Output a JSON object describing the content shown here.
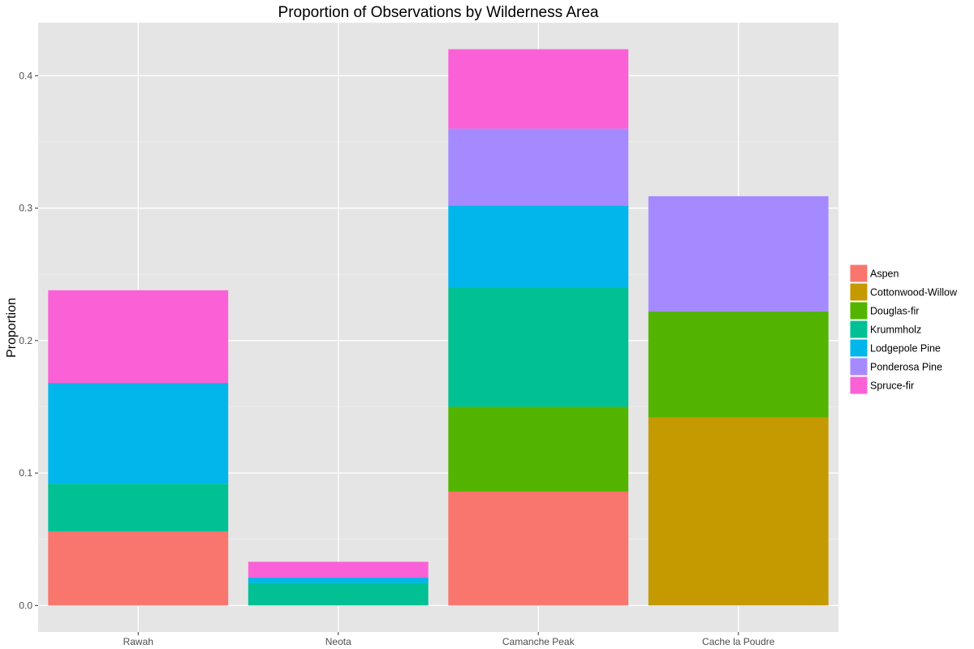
{
  "chart_data": {
    "type": "bar",
    "stacked": true,
    "title": "Proportion of Observations by Wilderness Area",
    "xlabel": "",
    "ylabel": "Proportion",
    "ylim": [
      -0.02,
      0.44
    ],
    "yticks": [
      0.0,
      0.1,
      0.2,
      0.3,
      0.4
    ],
    "ytick_labels": [
      "0.0",
      "0.1",
      "0.2",
      "0.3",
      "0.4"
    ],
    "grid": true,
    "legend_position": "right",
    "categories": [
      "Rawah",
      "Neota",
      "Camanche Peak",
      "Cache la Poudre"
    ],
    "series": [
      {
        "name": "Aspen",
        "color": "#F8766D",
        "values": [
          0.056,
          0.0,
          0.086,
          0.0
        ]
      },
      {
        "name": "Cottonwood-Willow",
        "color": "#C49A00",
        "values": [
          0.0,
          0.0,
          0.0,
          0.142
        ]
      },
      {
        "name": "Douglas-fir",
        "color": "#53B400",
        "values": [
          0.0,
          0.0,
          0.064,
          0.08
        ]
      },
      {
        "name": "Krummholz",
        "color": "#00C094",
        "values": [
          0.036,
          0.017,
          0.09,
          0.0
        ]
      },
      {
        "name": "Lodgepole Pine",
        "color": "#00B6EB",
        "values": [
          0.076,
          0.004,
          0.062,
          0.0
        ]
      },
      {
        "name": "Ponderosa Pine",
        "color": "#A58AFF",
        "values": [
          0.0,
          0.0,
          0.058,
          0.087
        ]
      },
      {
        "name": "Spruce-fir",
        "color": "#FB61D7",
        "values": [
          0.07,
          0.012,
          0.06,
          0.0
        ]
      }
    ]
  }
}
